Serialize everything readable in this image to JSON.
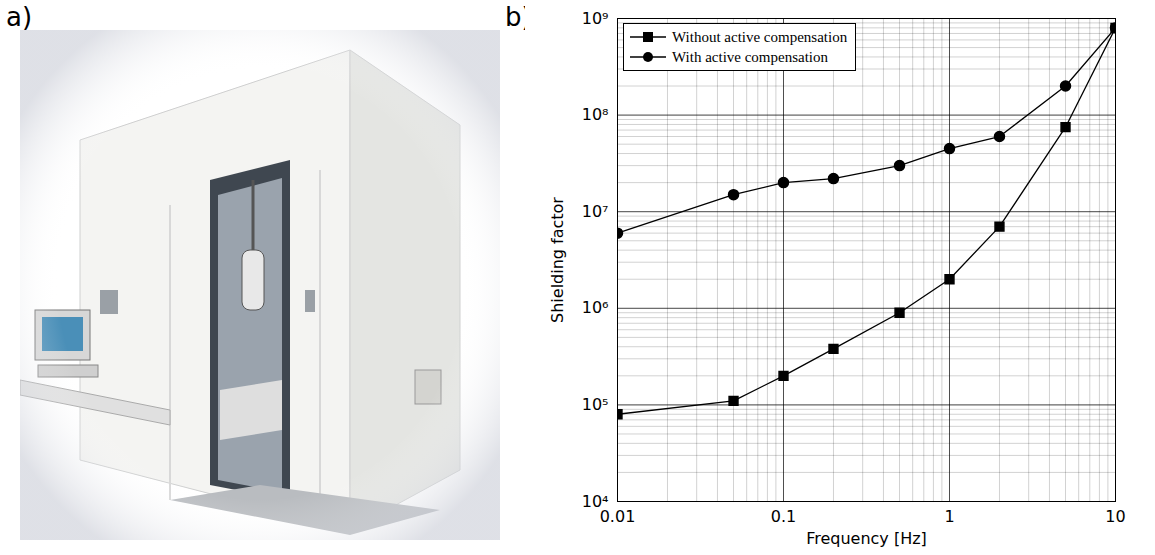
{
  "panel_labels": [
    "a)",
    "b)"
  ],
  "chart_data": {
    "type": "line",
    "x_label": "Frequency [Hz]",
    "y_label": "Shielding factor",
    "x": [
      0.01,
      0.05,
      0.1,
      0.2,
      0.5,
      1,
      2,
      5,
      10
    ],
    "series": [
      {
        "name": "Without active compensation",
        "color": "#000000",
        "marker": "square",
        "line_style": "solid",
        "values": [
          80000,
          110000,
          200000,
          380000,
          900000,
          2000000,
          7000000,
          75000000,
          800000000
        ]
      },
      {
        "name": "With active compensation",
        "color": "#000000",
        "marker": "circle",
        "line_style": "solid",
        "values": [
          6000000,
          15000000,
          20000000,
          22000000,
          30000000,
          45000000,
          60000000,
          200000000,
          800000000
        ]
      }
    ],
    "xlim": [
      0.01,
      10
    ],
    "ylim": [
      10000,
      1000000000
    ],
    "xticks": [
      0.01,
      0.1,
      1,
      10
    ],
    "yticks": [
      {
        "value": 10000,
        "label": "10⁴"
      },
      {
        "value": 100000,
        "label": "10⁵"
      },
      {
        "value": 1000000,
        "label": "10⁶"
      },
      {
        "value": 10000000,
        "label": "10⁷"
      },
      {
        "value": 100000000,
        "label": "10⁸"
      },
      {
        "value": 1000000000,
        "label": "10⁹"
      }
    ],
    "log": true,
    "grid": true,
    "legend": "upper left"
  }
}
